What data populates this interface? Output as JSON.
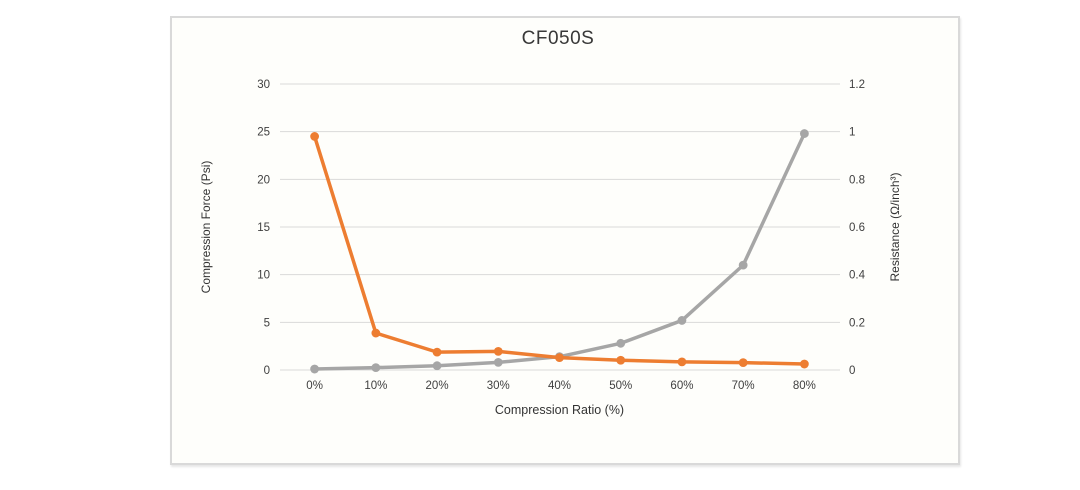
{
  "window": {
    "background_color": "#ffffff",
    "card_background_color": "#fefefb",
    "card_border_color": "#d9d9d9"
  },
  "chart_data": {
    "type": "line",
    "title": "CF050S",
    "xlabel": "Compression Ratio (%)",
    "categories": [
      "0%",
      "10%",
      "20%",
      "30%",
      "40%",
      "50%",
      "60%",
      "70%",
      "80%"
    ],
    "left_axis": {
      "label": "Compression Force (Psi)",
      "min": 0,
      "max": 30,
      "step": 5,
      "tick_labels": [
        "0",
        "5",
        "10",
        "15",
        "20",
        "25",
        "30"
      ]
    },
    "right_axis": {
      "label": "Resistance (Ω/inch³)",
      "min": 0,
      "max": 1.2,
      "step": 0.2,
      "tick_labels": [
        "0",
        "0.2",
        "0.4",
        "0.6",
        "0.8",
        "1",
        "1.2"
      ]
    },
    "grid": true,
    "legend_position": "none",
    "gridline_color": "#d9d9d9",
    "tick_label_color": "#3f3f3f",
    "series": [
      {
        "name": "Compression Force",
        "axis": "left",
        "color": "#a6a6a6",
        "marker": "circle",
        "values": [
          0.1,
          0.25,
          0.45,
          0.8,
          1.4,
          2.8,
          5.2,
          11,
          24.8
        ]
      },
      {
        "name": "Resistance",
        "axis": "right",
        "color": "#ed7d31",
        "marker": "circle",
        "values": [
          0.98,
          0.155,
          0.075,
          0.078,
          0.052,
          0.041,
          0.034,
          0.031,
          0.025
        ]
      }
    ]
  }
}
